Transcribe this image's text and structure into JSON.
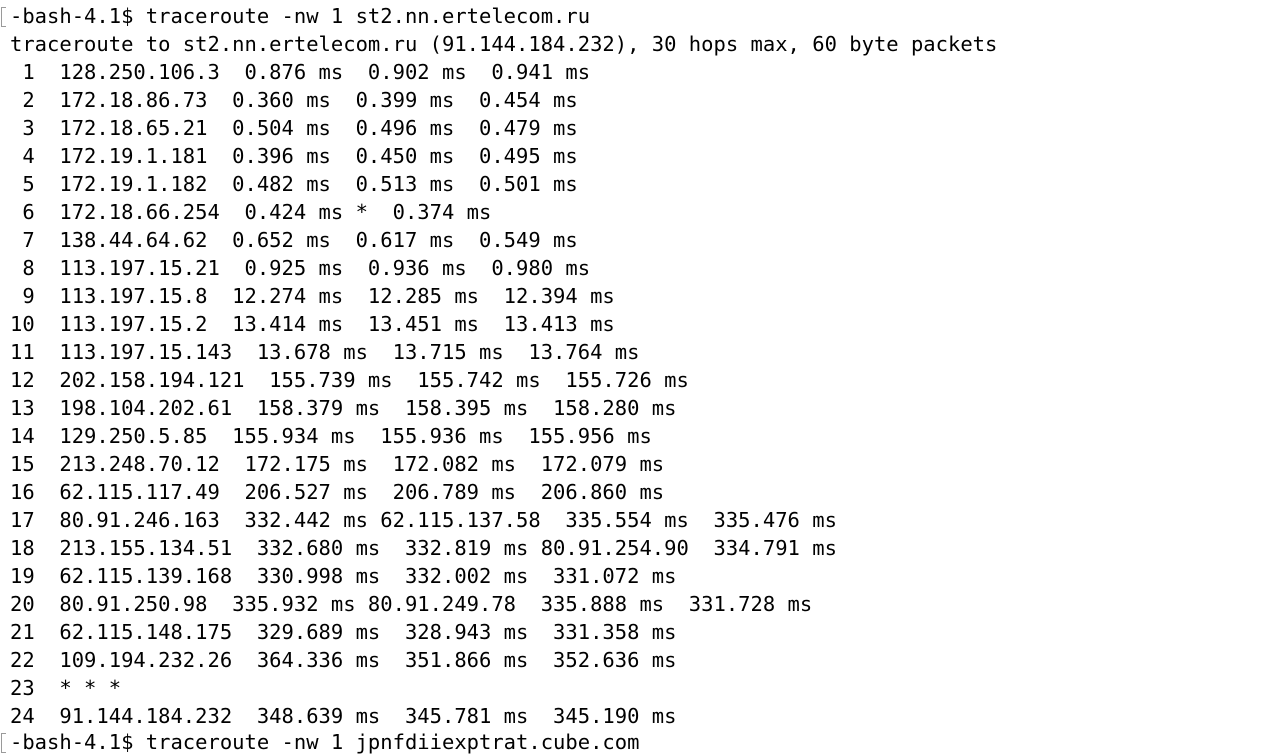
{
  "terminal": {
    "lines": [
      "-bash-4.1$ traceroute -nw 1 st2.nn.ertelecom.ru",
      "traceroute to st2.nn.ertelecom.ru (91.144.184.232), 30 hops max, 60 byte packets",
      " 1  128.250.106.3  0.876 ms  0.902 ms  0.941 ms",
      " 2  172.18.86.73  0.360 ms  0.399 ms  0.454 ms",
      " 3  172.18.65.21  0.504 ms  0.496 ms  0.479 ms",
      " 4  172.19.1.181  0.396 ms  0.450 ms  0.495 ms",
      " 5  172.19.1.182  0.482 ms  0.513 ms  0.501 ms",
      " 6  172.18.66.254  0.424 ms *  0.374 ms",
      " 7  138.44.64.62  0.652 ms  0.617 ms  0.549 ms",
      " 8  113.197.15.21  0.925 ms  0.936 ms  0.980 ms",
      " 9  113.197.15.8  12.274 ms  12.285 ms  12.394 ms",
      "10  113.197.15.2  13.414 ms  13.451 ms  13.413 ms",
      "11  113.197.15.143  13.678 ms  13.715 ms  13.764 ms",
      "12  202.158.194.121  155.739 ms  155.742 ms  155.726 ms",
      "13  198.104.202.61  158.379 ms  158.395 ms  158.280 ms",
      "14  129.250.5.85  155.934 ms  155.936 ms  155.956 ms",
      "15  213.248.70.12  172.175 ms  172.082 ms  172.079 ms",
      "16  62.115.117.49  206.527 ms  206.789 ms  206.860 ms",
      "17  80.91.246.163  332.442 ms 62.115.137.58  335.554 ms  335.476 ms",
      "18  213.155.134.51  332.680 ms  332.819 ms 80.91.254.90  334.791 ms",
      "19  62.115.139.168  330.998 ms  332.002 ms  331.072 ms",
      "20  80.91.250.98  335.932 ms 80.91.249.78  335.888 ms  331.728 ms",
      "21  62.115.148.175  329.689 ms  328.943 ms  331.358 ms",
      "22  109.194.232.26  364.336 ms  351.866 ms  352.636 ms",
      "23  * * *",
      "24  91.144.184.232  348.639 ms  345.781 ms  345.190 ms"
    ],
    "cut_line": "-bash-4.1$ traceroute -nw 1 jpnfdiiexptrat.cube.com"
  }
}
